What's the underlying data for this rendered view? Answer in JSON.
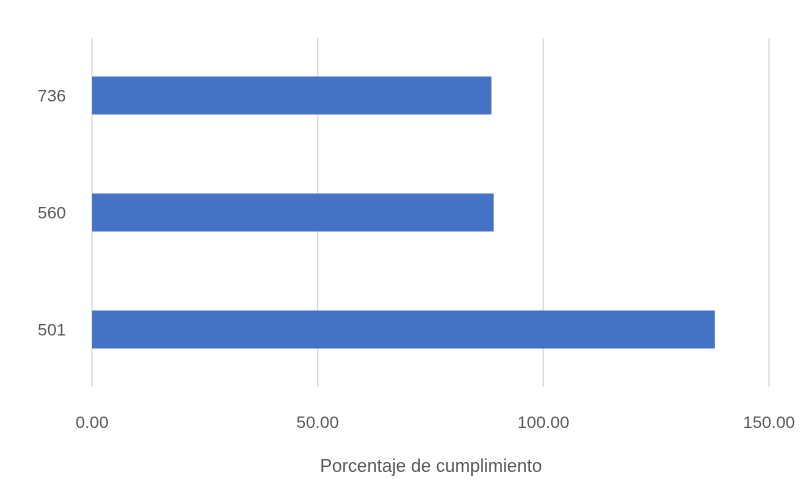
{
  "chart_data": {
    "type": "bar",
    "orientation": "horizontal",
    "categories": [
      "736",
      "560",
      "501"
    ],
    "values": [
      88.5,
      89,
      138
    ],
    "xlabel": "Porcentaje de cumplimiento",
    "ylabel": "",
    "xlim": [
      0,
      150
    ],
    "xticks": [
      "0.00",
      "50.00",
      "100.00",
      "150.00"
    ],
    "grid": "vertical",
    "bar_color": "#4472C4",
    "grid_color": "#D9D9D9",
    "text_color": "#595959"
  }
}
